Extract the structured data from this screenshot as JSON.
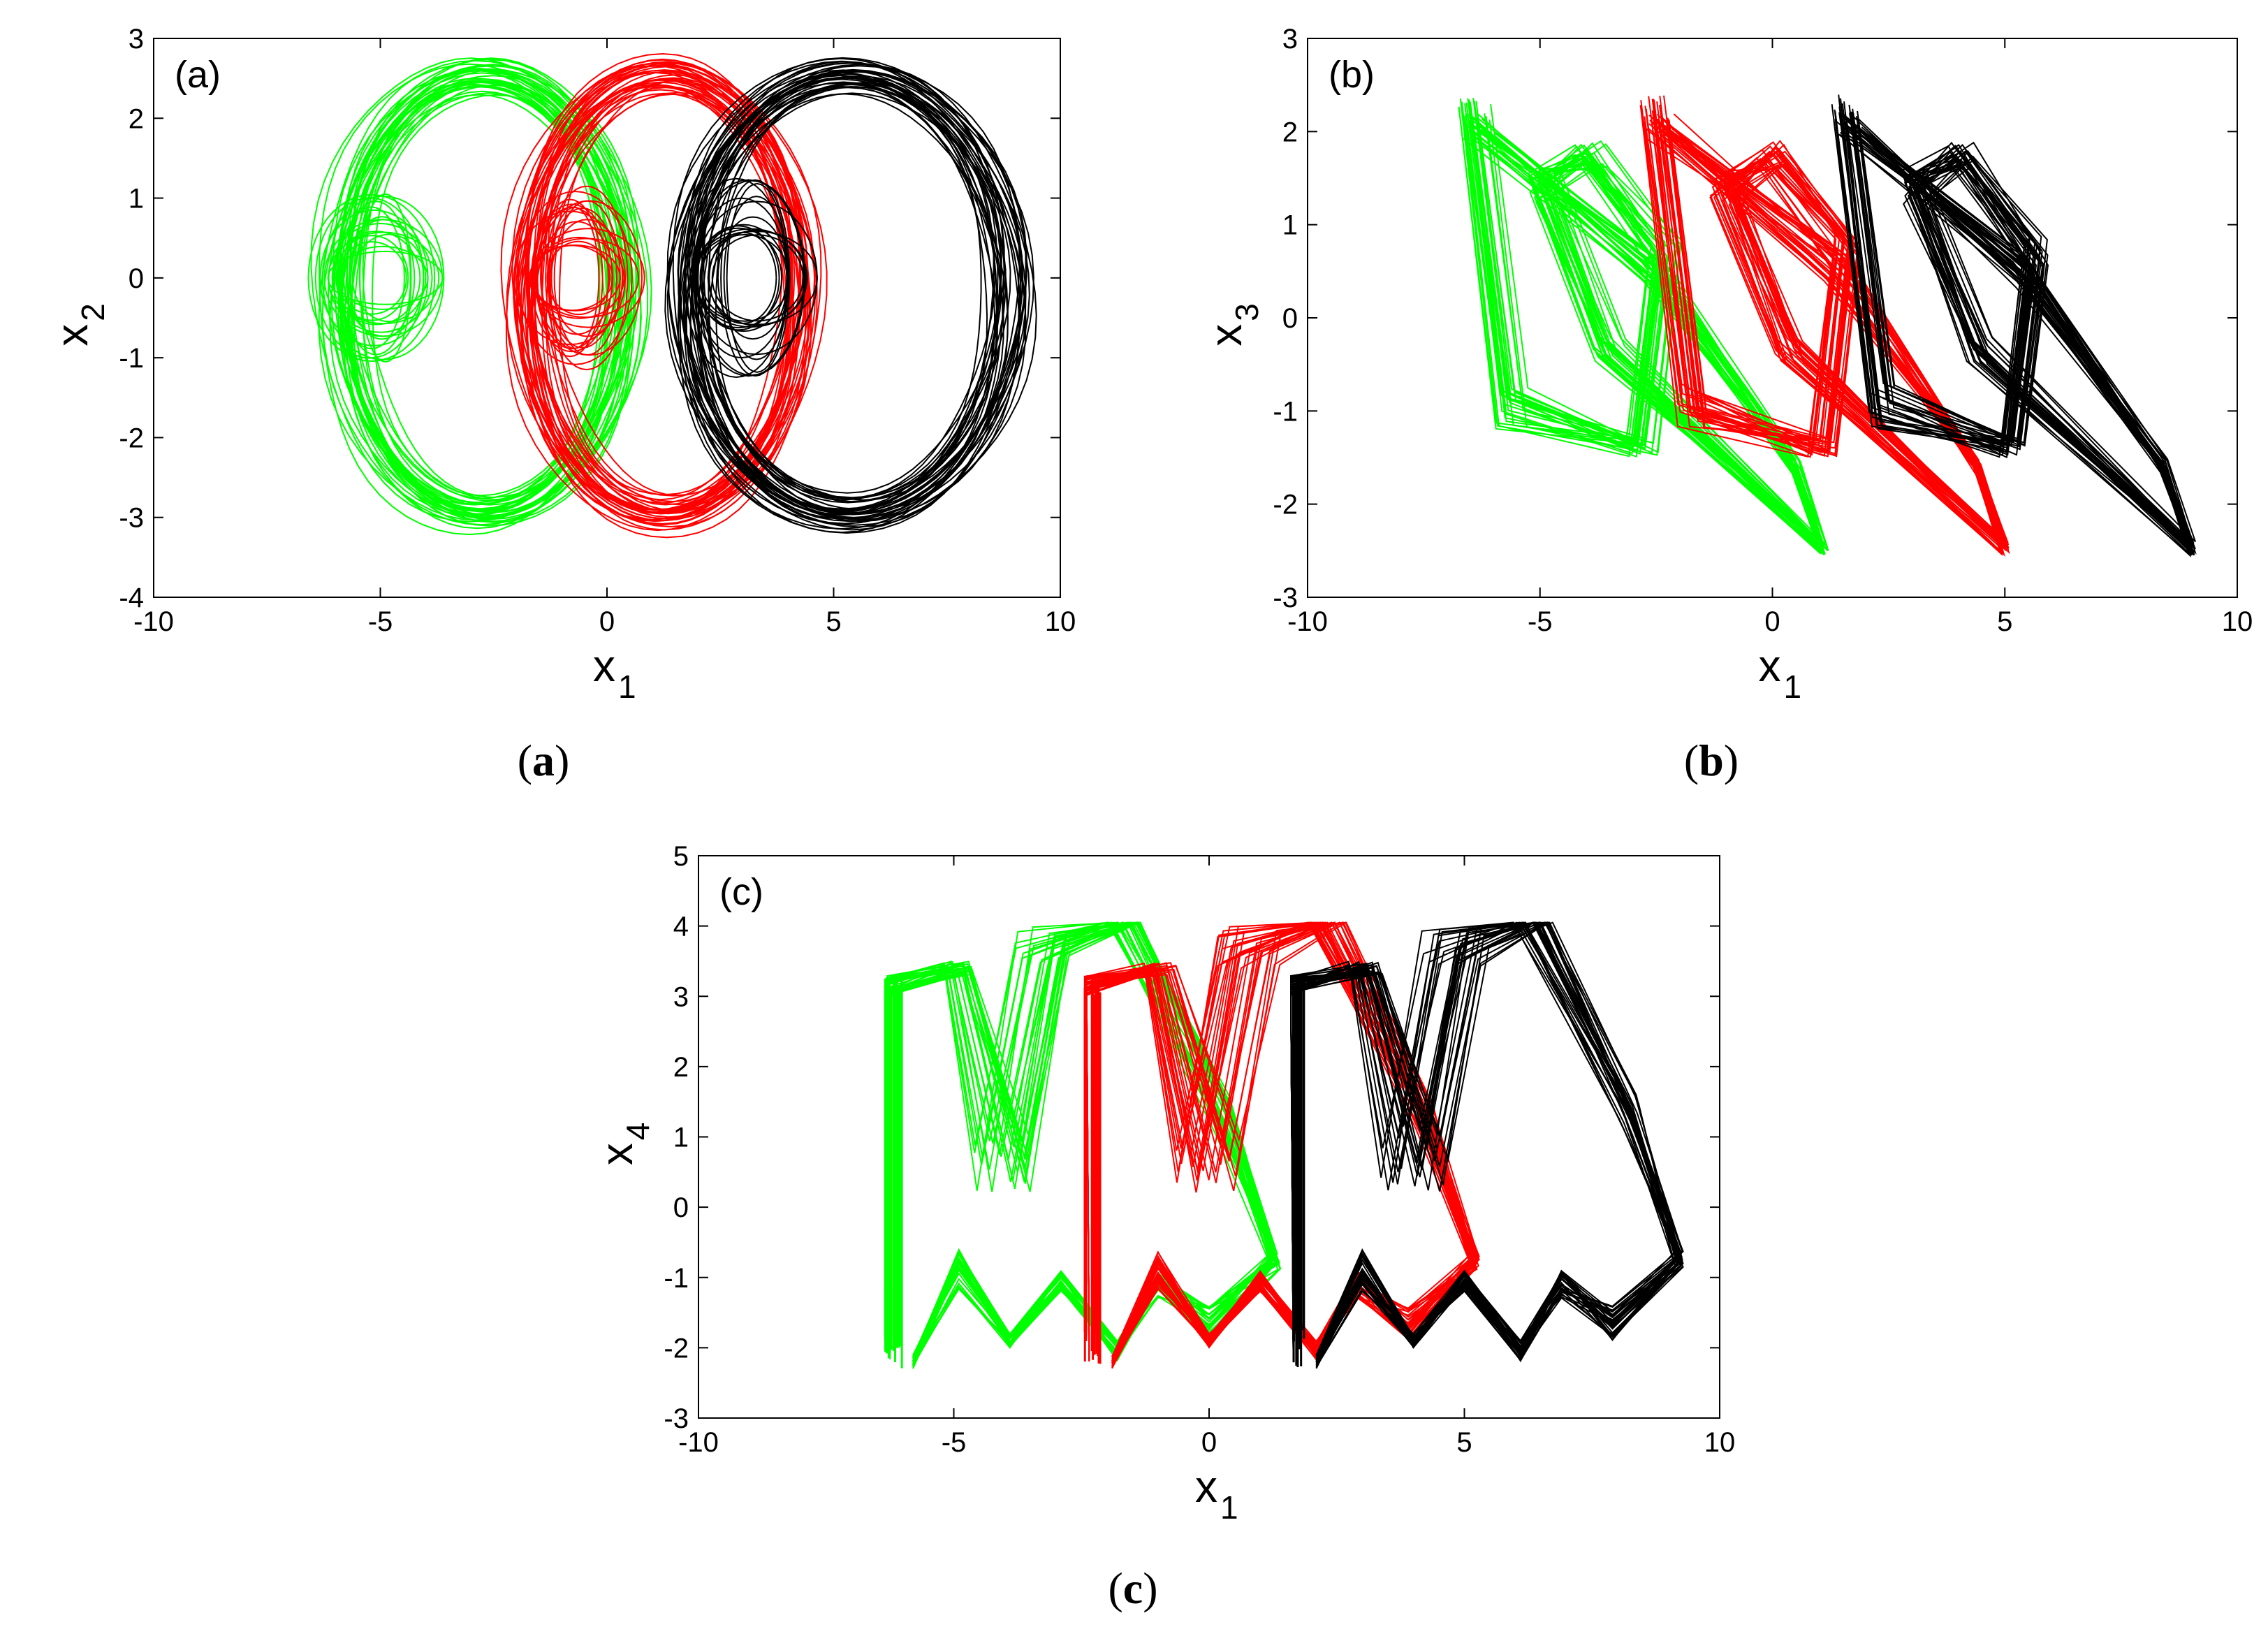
{
  "chart_data": [
    {
      "id": "a",
      "type": "line",
      "inset_label": "(a)",
      "caption": {
        "open": "(",
        "letter": "a",
        "close": ")"
      },
      "xlabel": {
        "main": "x",
        "sub": "1"
      },
      "ylabel": {
        "main": "x",
        "sub": "2"
      },
      "xlim": [
        -10,
        10
      ],
      "ylim": [
        -4,
        3
      ],
      "xticks": [
        "-10",
        "-5",
        "0",
        "5",
        "10"
      ],
      "yticks": [
        "-4",
        "-3",
        "-2",
        "-1",
        "0",
        "1",
        "2",
        "3"
      ],
      "grid": false,
      "series": [
        {
          "color": "#00ff00",
          "kind": "scroll",
          "cx": -2.8,
          "cy": -0.2,
          "rx": 3.4,
          "ry": 2.95,
          "inner_cx": -5.1,
          "inner_rx": 1.0,
          "inner_ry": 0.55,
          "rings": 34,
          "x_range": [
            -6.4,
            1.3
          ],
          "y_range": [
            -3.1,
            2.8
          ]
        },
        {
          "color": "#ff0000",
          "kind": "scroll",
          "cx": 1.2,
          "cy": -0.2,
          "rx": 3.3,
          "ry": 2.95,
          "inner_cx": -0.7,
          "inner_rx": 0.9,
          "inner_ry": 0.6,
          "rings": 34,
          "x_range": [
            -2.5,
            5.2
          ],
          "y_range": [
            -3.1,
            2.8
          ]
        },
        {
          "color": "#000000",
          "kind": "scroll",
          "cx": 5.3,
          "cy": -0.2,
          "rx": 3.9,
          "ry": 2.95,
          "inner_cx": 3.0,
          "inner_rx": 1.0,
          "inner_ry": 0.65,
          "rings": 34,
          "x_range": [
            1.4,
            9.3
          ],
          "y_range": [
            -3.1,
            2.8
          ]
        }
      ]
    },
    {
      "id": "b",
      "type": "line",
      "inset_label": "(b)",
      "caption": {
        "open": "(",
        "letter": "b",
        "close": ")"
      },
      "xlabel": {
        "main": "x",
        "sub": "1"
      },
      "ylabel": {
        "main": "x",
        "sub": "3"
      },
      "xlim": [
        -10,
        10
      ],
      "ylim": [
        -3,
        3
      ],
      "xticks": [
        "-10",
        "-5",
        "0",
        "5",
        "10"
      ],
      "yticks": [
        "-3",
        "-2",
        "-1",
        "0",
        "1",
        "2",
        "3"
      ],
      "grid": false,
      "series": [
        {
          "color": "#00ff00",
          "kind": "slant",
          "x0": -6.5,
          "x_range": [
            -6.5,
            1.3
          ],
          "y_range": [
            -2.5,
            2.5
          ]
        },
        {
          "color": "#ff0000",
          "kind": "slant",
          "x0": -2.6,
          "x_range": [
            -2.6,
            5.2
          ],
          "y_range": [
            -2.5,
            2.5
          ]
        },
        {
          "color": "#000000",
          "kind": "slant",
          "x0": 1.4,
          "x_range": [
            1.4,
            9.3
          ],
          "y_range": [
            -2.5,
            2.5
          ]
        }
      ]
    },
    {
      "id": "c",
      "type": "line",
      "inset_label": "(c)",
      "caption": {
        "open": "(",
        "letter": "c",
        "close": ")"
      },
      "xlabel": {
        "main": "x",
        "sub": "1"
      },
      "ylabel": {
        "main": "x",
        "sub": "4"
      },
      "xlim": [
        -10,
        10
      ],
      "ylim": [
        -3,
        5
      ],
      "xticks": [
        "-10",
        "-5",
        "0",
        "5",
        "10"
      ],
      "yticks": [
        "-3",
        "-2",
        "-1",
        "0",
        "1",
        "2",
        "3",
        "4",
        "5"
      ],
      "grid": false,
      "series": [
        {
          "color": "#00ff00",
          "kind": "wave",
          "x0": -6.4,
          "x_range": [
            -6.4,
            1.3
          ],
          "y_range": [
            -2.3,
            4.1
          ]
        },
        {
          "color": "#ff0000",
          "kind": "wave",
          "x0": -2.5,
          "x_range": [
            -2.5,
            5.3
          ],
          "y_range": [
            -2.3,
            4.1
          ]
        },
        {
          "color": "#000000",
          "kind": "wave",
          "x0": 1.5,
          "x_range": [
            1.5,
            9.3
          ],
          "y_range": [
            -2.3,
            4.1
          ]
        }
      ]
    }
  ]
}
